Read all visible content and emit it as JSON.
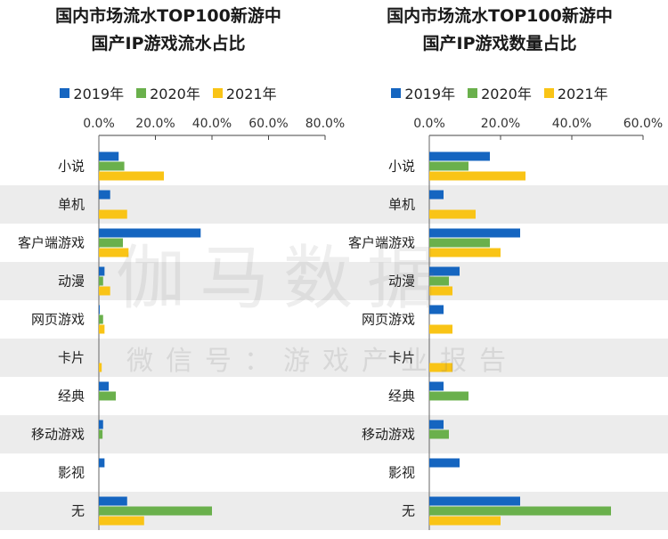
{
  "colors": {
    "2019": "#1565c0",
    "2020": "#6ab04c",
    "2021": "#f9c416",
    "band": "#ececec"
  },
  "watermark": {
    "main": "伽马数据",
    "sub": "微信号：游戏产业报告"
  },
  "chart_data": [
    {
      "type": "bar",
      "orientation": "horizontal",
      "title_line1": "国内市场流水TOP100新游中",
      "title_line2": "国产IP游戏流水占比",
      "xlim": [
        0,
        80
      ],
      "ticks": [
        "0.0%",
        "20.0%",
        "40.0%",
        "60.0%",
        "80.0%"
      ],
      "tick_values": [
        0,
        20,
        40,
        60,
        80
      ],
      "categories": [
        "小说",
        "单机",
        "客户端游戏",
        "动漫",
        "网页游戏",
        "卡片",
        "经典",
        "移动游戏",
        "影视",
        "无"
      ],
      "series": [
        {
          "name": "2019年",
          "values": [
            7.0,
            4.0,
            36.0,
            2.0,
            0.3,
            0.0,
            3.5,
            1.5,
            2.0,
            10.0
          ]
        },
        {
          "name": "2020年",
          "values": [
            9.0,
            0.0,
            8.5,
            1.5,
            1.5,
            0.0,
            6.0,
            1.3,
            0.0,
            40.0
          ]
        },
        {
          "name": "2021年",
          "values": [
            23.0,
            10.0,
            10.5,
            4.0,
            2.0,
            1.0,
            0.0,
            0.0,
            0.0,
            16.0
          ]
        }
      ]
    },
    {
      "type": "bar",
      "orientation": "horizontal",
      "title_line1": "国内市场流水TOP100新游中",
      "title_line2": "国产IP游戏数量占比",
      "xlim": [
        0,
        60
      ],
      "ticks": [
        "0.0%",
        "20.0%",
        "40.0%",
        "60.0%"
      ],
      "tick_values": [
        0,
        20,
        40,
        60
      ],
      "categories": [
        "小说",
        "单机",
        "客户端游戏",
        "动漫",
        "网页游戏",
        "卡片",
        "经典",
        "移动游戏",
        "影视",
        "无"
      ],
      "series": [
        {
          "name": "2019年",
          "values": [
            17.0,
            4.0,
            25.5,
            8.5,
            4.0,
            0.0,
            4.0,
            4.0,
            8.5,
            25.5
          ]
        },
        {
          "name": "2020年",
          "values": [
            11.0,
            0.0,
            17.0,
            5.5,
            0.0,
            0.0,
            11.0,
            5.5,
            0.0,
            51.0
          ]
        },
        {
          "name": "2021年",
          "values": [
            27.0,
            13.0,
            20.0,
            6.5,
            6.5,
            6.5,
            0.0,
            0.0,
            0.0,
            20.0
          ]
        }
      ]
    }
  ]
}
